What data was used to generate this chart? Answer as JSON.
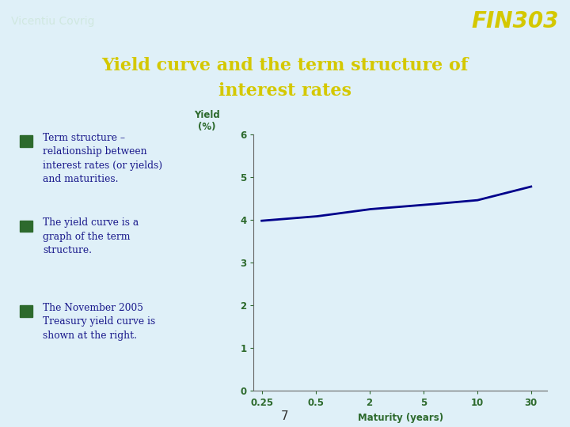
{
  "header_bg_color": "#2d7a6e",
  "header_text_left": "Vicentiu Covrig",
  "header_text_right": "FIN303",
  "header_text_color": "#d0e8e0",
  "header_right_color": "#d4c800",
  "body_bg_color": "#dff0f8",
  "title_line1": "Yield curve and the term structure of",
  "title_line2": "interest rates",
  "title_color": "#d4c800",
  "bullet_color": "#1a1a8c",
  "bullet_marker_color": "#2d6a2d",
  "bullets": [
    "Term structure –\nrelationship between\ninterest rates (or yields)\nand maturities.",
    "The yield curve is a\ngraph of the term\nstructure.",
    "The November 2005\nTreasury yield curve is\nshown at the right."
  ],
  "chart_x": [
    0.25,
    0.5,
    2,
    5,
    10,
    30
  ],
  "chart_y": [
    3.98,
    4.08,
    4.25,
    4.35,
    4.46,
    4.78
  ],
  "chart_ylabel": "Yield\n(%)",
  "chart_xlabel": "Maturity (years)",
  "chart_label_color": "#2d6a2d",
  "chart_tick_color": "#2d6a2d",
  "chart_line_color": "#00008b",
  "chart_ylim": [
    0,
    6
  ],
  "chart_yticks": [
    0,
    1,
    2,
    3,
    4,
    5,
    6
  ],
  "chart_xtick_labels": [
    "0.25",
    "0.5",
    "2",
    "5",
    "10",
    "30"
  ],
  "page_number": "7"
}
